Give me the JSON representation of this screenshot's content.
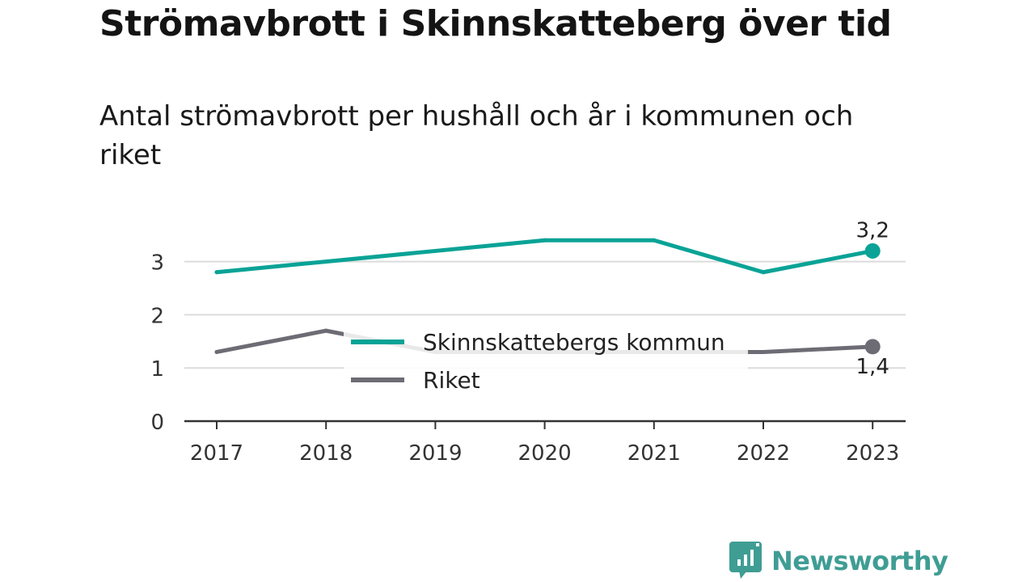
{
  "title": "Strömavbrott i Skinnskatteberg över tid",
  "subtitle": "Antal strömavbrott per hushåll och år i kommunen och riket",
  "brand": {
    "name": "Newsworthy",
    "icon": "newsworthy-logo-icon",
    "color": "#3f9d94"
  },
  "chart_data": {
    "type": "line",
    "x": [
      "2017",
      "2018",
      "2019",
      "2020",
      "2021",
      "2022",
      "2023"
    ],
    "ylim": [
      0,
      3.5
    ],
    "yticks": [
      "0",
      "1",
      "2",
      "3"
    ],
    "grid": true,
    "legend_position": "center",
    "series": [
      {
        "name": "Skinnskattebergs kommun",
        "color": "#0aa396",
        "values": [
          2.8,
          3.0,
          3.2,
          3.4,
          3.4,
          2.8,
          3.2
        ],
        "end_label": "3,2"
      },
      {
        "name": "Riket",
        "color": "#6d6c74",
        "values": [
          1.3,
          1.7,
          1.3,
          1.3,
          1.3,
          1.3,
          1.4
        ],
        "end_label": "1,4"
      }
    ]
  }
}
